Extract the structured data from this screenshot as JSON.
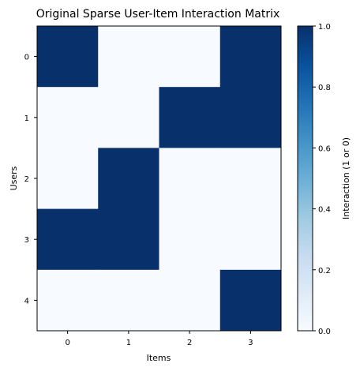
{
  "chart_data": {
    "type": "heatmap",
    "title": "Original Sparse User-Item Interaction Matrix",
    "xlabel": "Items",
    "ylabel": "Users",
    "x_ticks": [
      "0",
      "1",
      "2",
      "3"
    ],
    "y_ticks": [
      "0",
      "1",
      "2",
      "3",
      "4"
    ],
    "matrix": [
      [
        1,
        0,
        0,
        1
      ],
      [
        0,
        0,
        1,
        1
      ],
      [
        0,
        1,
        0,
        0
      ],
      [
        1,
        1,
        0,
        0
      ],
      [
        0,
        0,
        0,
        1
      ]
    ],
    "colormap": "Blues",
    "value_range": [
      0,
      1
    ],
    "grid": false,
    "colorbar": {
      "label": "Interaction (1 or 0)",
      "ticks": [
        "0.0",
        "0.2",
        "0.4",
        "0.6",
        "0.8",
        "1.0"
      ],
      "range": [
        0,
        1
      ],
      "placement": "right"
    },
    "colors": {
      "low": "#f7fbff",
      "high": "#08306b"
    }
  }
}
